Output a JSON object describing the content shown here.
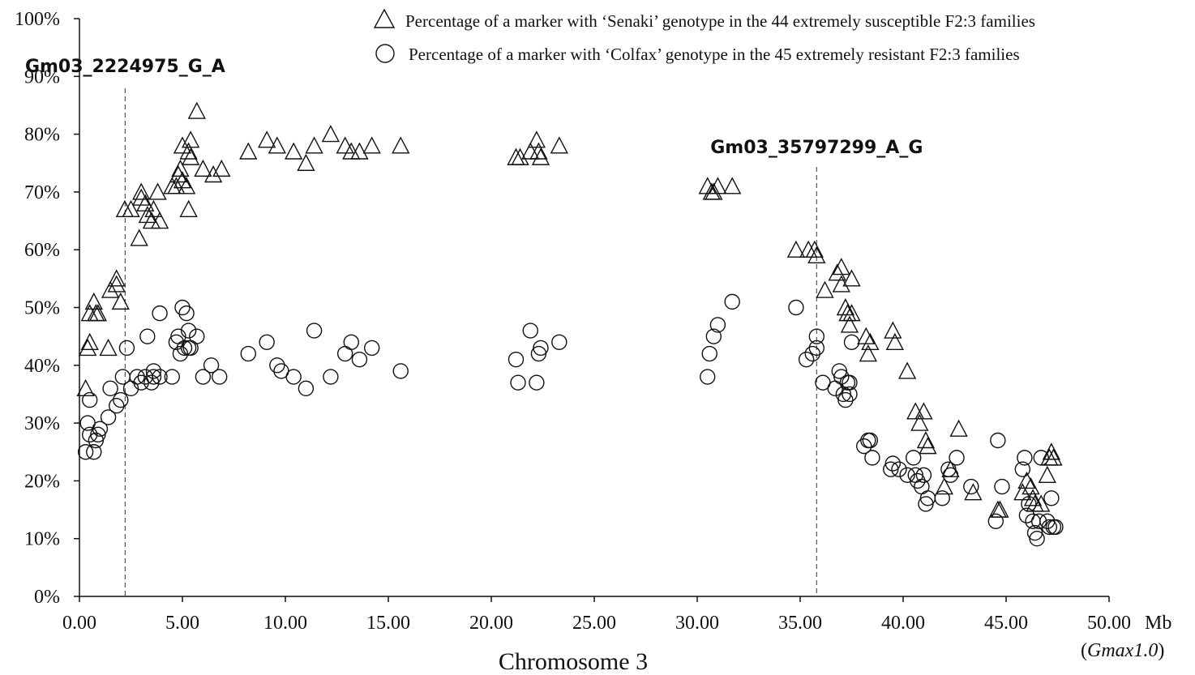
{
  "chart_data": {
    "type": "scatter",
    "xlabel": "Chromosome 3",
    "x_unit": "Mb",
    "x_unit_sub": "(Gmax1.0)",
    "x_unit_sub_open": "(",
    "x_unit_sub_italic": "Gmax1.0",
    "x_unit_sub_close": ")",
    "xlim": [
      0,
      50
    ],
    "ylim": [
      0,
      100
    ],
    "xticks": [
      "0.00",
      "5.00",
      "10.00",
      "15.00",
      "20.00",
      "25.00",
      "30.00",
      "35.00",
      "40.00",
      "45.00",
      "50.00"
    ],
    "yticks": [
      "0%",
      "10%",
      "20%",
      "30%",
      "40%",
      "50%",
      "60%",
      "70%",
      "80%",
      "90%",
      "100%"
    ],
    "grid": false,
    "legend_position": "top-right",
    "annotations": [
      {
        "label": "Gm03_2224975_G_A",
        "x": 2.22
      },
      {
        "label": "Gm03_35797299_A_G",
        "x": 35.8
      }
    ],
    "series": [
      {
        "name": "Percentage of a marker with ‘Senaki’ genotype in the 44 extremely susceptible F2:3 families",
        "marker": "triangle",
        "points": [
          [
            0.3,
            36
          ],
          [
            0.4,
            43
          ],
          [
            0.5,
            44
          ],
          [
            0.5,
            49
          ],
          [
            0.7,
            51
          ],
          [
            0.8,
            49
          ],
          [
            0.9,
            49
          ],
          [
            1.4,
            43
          ],
          [
            1.5,
            53
          ],
          [
            1.8,
            54
          ],
          [
            1.8,
            55
          ],
          [
            2.0,
            51
          ],
          [
            2.2,
            67
          ],
          [
            2.5,
            67
          ],
          [
            2.9,
            62
          ],
          [
            3.0,
            69
          ],
          [
            3.0,
            70
          ],
          [
            3.2,
            68
          ],
          [
            3.3,
            66
          ],
          [
            3.5,
            65
          ],
          [
            3.6,
            67
          ],
          [
            3.8,
            70
          ],
          [
            3.9,
            65
          ],
          [
            4.5,
            71
          ],
          [
            4.7,
            71
          ],
          [
            4.8,
            73
          ],
          [
            4.9,
            74
          ],
          [
            5.0,
            78
          ],
          [
            5.0,
            72
          ],
          [
            5.2,
            71
          ],
          [
            5.3,
            67
          ],
          [
            5.3,
            77
          ],
          [
            5.4,
            79
          ],
          [
            5.4,
            76
          ],
          [
            5.7,
            84
          ],
          [
            6.0,
            74
          ],
          [
            6.5,
            73
          ],
          [
            6.9,
            74
          ],
          [
            8.2,
            77
          ],
          [
            9.1,
            79
          ],
          [
            9.6,
            78
          ],
          [
            10.4,
            77
          ],
          [
            11.0,
            75
          ],
          [
            11.4,
            78
          ],
          [
            12.2,
            80
          ],
          [
            12.9,
            78
          ],
          [
            13.2,
            77
          ],
          [
            13.6,
            77
          ],
          [
            14.2,
            78
          ],
          [
            15.6,
            78
          ],
          [
            21.2,
            76
          ],
          [
            21.4,
            76
          ],
          [
            21.9,
            77
          ],
          [
            22.2,
            79
          ],
          [
            22.3,
            77
          ],
          [
            22.4,
            76
          ],
          [
            23.3,
            78
          ],
          [
            30.5,
            71
          ],
          [
            30.7,
            70
          ],
          [
            30.8,
            70
          ],
          [
            31.0,
            71
          ],
          [
            31.7,
            71
          ],
          [
            34.8,
            60
          ],
          [
            35.4,
            60
          ],
          [
            35.7,
            60
          ],
          [
            35.8,
            59
          ],
          [
            36.2,
            53
          ],
          [
            36.8,
            56
          ],
          [
            37.0,
            57
          ],
          [
            37.0,
            54
          ],
          [
            37.2,
            50
          ],
          [
            37.3,
            49
          ],
          [
            37.4,
            47
          ],
          [
            37.5,
            55
          ],
          [
            37.5,
            49
          ],
          [
            38.2,
            45
          ],
          [
            38.3,
            42
          ],
          [
            38.4,
            44
          ],
          [
            39.5,
            46
          ],
          [
            39.6,
            44
          ],
          [
            40.2,
            39
          ],
          [
            40.6,
            32
          ],
          [
            40.8,
            30
          ],
          [
            41.0,
            32
          ],
          [
            41.1,
            27
          ],
          [
            41.2,
            26
          ],
          [
            42.0,
            19
          ],
          [
            42.3,
            22
          ],
          [
            42.7,
            29
          ],
          [
            43.4,
            18
          ],
          [
            44.6,
            15
          ],
          [
            44.7,
            15
          ],
          [
            45.8,
            18
          ],
          [
            46.0,
            20
          ],
          [
            46.2,
            19
          ],
          [
            46.3,
            17
          ],
          [
            46.4,
            16
          ],
          [
            46.7,
            16
          ],
          [
            47.0,
            21
          ],
          [
            47.1,
            24
          ],
          [
            47.2,
            25
          ],
          [
            47.3,
            24
          ]
        ]
      },
      {
        "name": "Percentage of a marker with ‘Colfax’ genotype in the 45 extremely resistant F2:3 families",
        "marker": "circle",
        "points": [
          [
            0.3,
            25
          ],
          [
            0.4,
            30
          ],
          [
            0.5,
            34
          ],
          [
            0.5,
            28
          ],
          [
            0.7,
            25
          ],
          [
            0.8,
            27
          ],
          [
            0.9,
            28
          ],
          [
            1.0,
            29
          ],
          [
            1.4,
            31
          ],
          [
            1.5,
            36
          ],
          [
            1.8,
            33
          ],
          [
            2.0,
            34
          ],
          [
            2.1,
            38
          ],
          [
            2.3,
            43
          ],
          [
            2.5,
            36
          ],
          [
            2.8,
            38
          ],
          [
            3.0,
            37
          ],
          [
            3.2,
            38
          ],
          [
            3.3,
            45
          ],
          [
            3.5,
            37
          ],
          [
            3.6,
            38
          ],
          [
            3.6,
            39
          ],
          [
            3.9,
            38
          ],
          [
            3.9,
            49
          ],
          [
            4.5,
            38
          ],
          [
            4.7,
            44
          ],
          [
            4.8,
            45
          ],
          [
            4.9,
            42
          ],
          [
            5.0,
            50
          ],
          [
            5.1,
            43
          ],
          [
            5.2,
            49
          ],
          [
            5.3,
            46
          ],
          [
            5.3,
            43
          ],
          [
            5.4,
            43
          ],
          [
            5.7,
            45
          ],
          [
            6.0,
            38
          ],
          [
            6.4,
            40
          ],
          [
            6.8,
            38
          ],
          [
            8.2,
            42
          ],
          [
            9.1,
            44
          ],
          [
            9.6,
            40
          ],
          [
            9.8,
            39
          ],
          [
            10.4,
            38
          ],
          [
            11.0,
            36
          ],
          [
            11.4,
            46
          ],
          [
            12.2,
            38
          ],
          [
            12.9,
            42
          ],
          [
            13.2,
            44
          ],
          [
            13.6,
            41
          ],
          [
            14.2,
            43
          ],
          [
            15.6,
            39
          ],
          [
            21.2,
            41
          ],
          [
            21.3,
            37
          ],
          [
            21.9,
            46
          ],
          [
            22.2,
            37
          ],
          [
            22.3,
            42
          ],
          [
            22.4,
            43
          ],
          [
            23.3,
            44
          ],
          [
            30.5,
            38
          ],
          [
            30.6,
            42
          ],
          [
            30.8,
            45
          ],
          [
            31.0,
            47
          ],
          [
            31.7,
            51
          ],
          [
            34.8,
            50
          ],
          [
            35.3,
            41
          ],
          [
            35.6,
            42
          ],
          [
            35.8,
            43
          ],
          [
            35.8,
            45
          ],
          [
            36.1,
            37
          ],
          [
            36.7,
            36
          ],
          [
            36.9,
            39
          ],
          [
            37.0,
            38
          ],
          [
            37.1,
            35
          ],
          [
            37.2,
            34
          ],
          [
            37.3,
            37
          ],
          [
            37.4,
            37
          ],
          [
            37.4,
            35
          ],
          [
            37.5,
            44
          ],
          [
            38.1,
            26
          ],
          [
            38.3,
            27
          ],
          [
            38.4,
            27
          ],
          [
            38.5,
            24
          ],
          [
            39.4,
            22
          ],
          [
            39.5,
            23
          ],
          [
            39.8,
            22
          ],
          [
            40.2,
            21
          ],
          [
            40.5,
            24
          ],
          [
            40.6,
            21
          ],
          [
            40.7,
            20
          ],
          [
            40.9,
            19
          ],
          [
            41.0,
            21
          ],
          [
            41.1,
            16
          ],
          [
            41.2,
            17
          ],
          [
            41.9,
            17
          ],
          [
            42.2,
            22
          ],
          [
            42.3,
            21
          ],
          [
            42.6,
            24
          ],
          [
            43.3,
            19
          ],
          [
            44.5,
            13
          ],
          [
            44.6,
            27
          ],
          [
            44.8,
            19
          ],
          [
            45.8,
            22
          ],
          [
            45.9,
            24
          ],
          [
            46.0,
            14
          ],
          [
            46.1,
            16
          ],
          [
            46.3,
            13
          ],
          [
            46.4,
            11
          ],
          [
            46.5,
            10
          ],
          [
            46.6,
            13
          ],
          [
            46.7,
            24
          ],
          [
            47.0,
            13
          ],
          [
            47.1,
            12
          ],
          [
            47.2,
            17
          ],
          [
            47.3,
            12
          ],
          [
            47.4,
            12
          ]
        ]
      }
    ]
  }
}
